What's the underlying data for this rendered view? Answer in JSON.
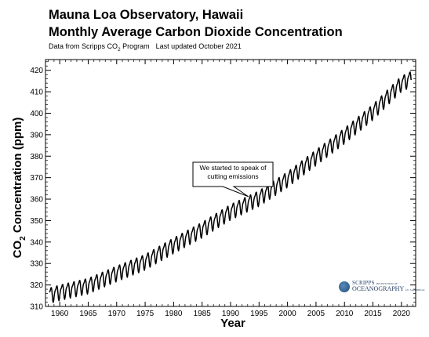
{
  "chart_data": {
    "type": "line",
    "title": "Mauna Loa Observatory, Hawaii",
    "subtitle": "Monthly Average Carbon Dioxide Concentration",
    "source_line": {
      "data_from_prefix": "Data from Scripps CO",
      "data_from_sub": "2",
      "data_from_suffix": " Program",
      "updated": "Last updated October 2021"
    },
    "xlabel": "Year",
    "ylabel": {
      "prefix": "CO",
      "sub": "2",
      "suffix": " Concentration (ppm)"
    },
    "xlim": [
      1957.5,
      2022.5
    ],
    "ylim": [
      310,
      425
    ],
    "xticks": [
      1960,
      1965,
      1970,
      1975,
      1980,
      1985,
      1990,
      1995,
      2000,
      2005,
      2010,
      2015,
      2020
    ],
    "yticks": [
      310,
      320,
      330,
      340,
      350,
      360,
      370,
      380,
      390,
      400,
      410,
      420
    ],
    "grid": false,
    "legend": "none",
    "series_color": "#000000",
    "annual_mean_ppm": [
      [
        1958,
        315.3
      ],
      [
        1960,
        316.9
      ],
      [
        1965,
        320.0
      ],
      [
        1970,
        325.7
      ],
      [
        1975,
        331.1
      ],
      [
        1980,
        338.8
      ],
      [
        1985,
        346.1
      ],
      [
        1990,
        354.4
      ],
      [
        1995,
        360.8
      ],
      [
        2000,
        369.6
      ],
      [
        2005,
        379.8
      ],
      [
        2010,
        389.9
      ],
      [
        2015,
        401.0
      ],
      [
        2020,
        414.2
      ],
      [
        2021.8,
        416.5
      ]
    ],
    "seasonal_amplitude_ppm": 3.2,
    "annotation": "We started to speak of cutting emissions",
    "annotation_x": 1993
  },
  "logo": {
    "line1": "SCRIPPS",
    "line1_small": "INSTITUTION OF",
    "line2": "OCEANOGRAPHY",
    "line2_small": "UC SAN DIEGO"
  }
}
